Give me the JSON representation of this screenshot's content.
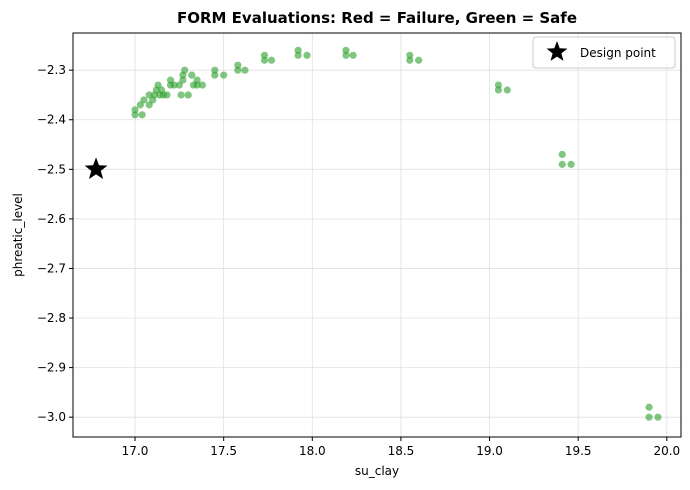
{
  "chart_data": {
    "type": "scatter",
    "title": "FORM Evaluations: Red = Failure, Green = Safe",
    "xlabel": "su_clay",
    "ylabel": "phreatic_level",
    "xlim": [
      16.65,
      20.08
    ],
    "ylim": [
      -3.04,
      -2.225
    ],
    "xticks": [
      17.0,
      17.5,
      18.0,
      18.5,
      19.0,
      19.5,
      20.0
    ],
    "xtick_labels": [
      "17.0",
      "17.5",
      "18.0",
      "18.5",
      "19.0",
      "19.5",
      "20.0"
    ],
    "yticks": [
      -3.0,
      -2.9,
      -2.8,
      -2.7,
      -2.6,
      -2.5,
      -2.4,
      -2.3
    ],
    "ytick_labels": [
      "−3.0",
      "−2.9",
      "−2.8",
      "−2.7",
      "−2.6",
      "−2.5",
      "−2.4",
      "−2.3"
    ],
    "grid": true,
    "legend_position": "top-right",
    "legend": [
      {
        "label": "Design point",
        "marker": "star",
        "color": "#000000"
      }
    ],
    "design_point": {
      "x": 16.78,
      "y": -2.5
    },
    "point_color": "#2ca02c",
    "safe_points": [
      [
        17.0,
        -2.38
      ],
      [
        17.0,
        -2.39
      ],
      [
        17.04,
        -2.39
      ],
      [
        17.03,
        -2.37
      ],
      [
        17.05,
        -2.36
      ],
      [
        17.08,
        -2.35
      ],
      [
        17.08,
        -2.37
      ],
      [
        17.1,
        -2.36
      ],
      [
        17.11,
        -2.35
      ],
      [
        17.12,
        -2.34
      ],
      [
        17.13,
        -2.33
      ],
      [
        17.14,
        -2.35
      ],
      [
        17.15,
        -2.34
      ],
      [
        17.16,
        -2.35
      ],
      [
        17.18,
        -2.35
      ],
      [
        17.2,
        -2.32
      ],
      [
        17.2,
        -2.33
      ],
      [
        17.22,
        -2.33
      ],
      [
        17.25,
        -2.33
      ],
      [
        17.26,
        -2.35
      ],
      [
        17.27,
        -2.32
      ],
      [
        17.27,
        -2.31
      ],
      [
        17.28,
        -2.3
      ],
      [
        17.3,
        -2.35
      ],
      [
        17.32,
        -2.31
      ],
      [
        17.33,
        -2.33
      ],
      [
        17.35,
        -2.33
      ],
      [
        17.35,
        -2.32
      ],
      [
        17.38,
        -2.33
      ],
      [
        17.45,
        -2.31
      ],
      [
        17.45,
        -2.3
      ],
      [
        17.5,
        -2.31
      ],
      [
        17.58,
        -2.29
      ],
      [
        17.58,
        -2.3
      ],
      [
        17.62,
        -2.3
      ],
      [
        17.73,
        -2.27
      ],
      [
        17.73,
        -2.28
      ],
      [
        17.77,
        -2.28
      ],
      [
        17.92,
        -2.26
      ],
      [
        17.92,
        -2.27
      ],
      [
        17.97,
        -2.27
      ],
      [
        18.19,
        -2.26
      ],
      [
        18.19,
        -2.27
      ],
      [
        18.23,
        -2.27
      ],
      [
        18.55,
        -2.27
      ],
      [
        18.55,
        -2.28
      ],
      [
        18.6,
        -2.28
      ],
      [
        19.05,
        -2.33
      ],
      [
        19.05,
        -2.34
      ],
      [
        19.1,
        -2.34
      ],
      [
        19.41,
        -2.47
      ],
      [
        19.41,
        -2.49
      ],
      [
        19.46,
        -2.49
      ],
      [
        19.9,
        -2.98
      ],
      [
        19.9,
        -3.0
      ],
      [
        19.95,
        -3.0
      ]
    ]
  }
}
